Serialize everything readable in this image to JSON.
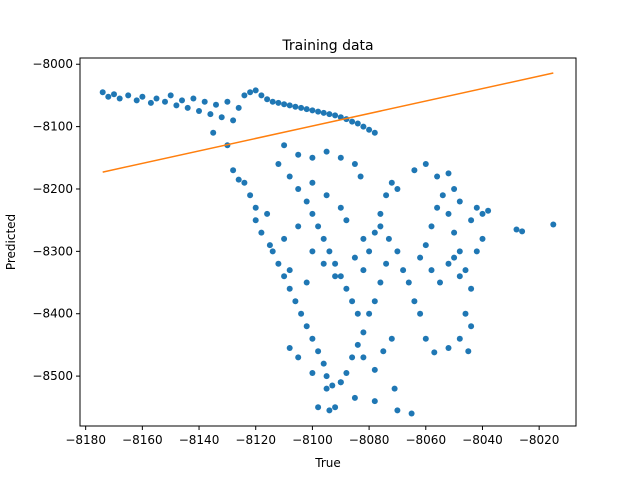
{
  "chart_data": {
    "type": "scatter",
    "title": "Training data",
    "xlabel": "True",
    "ylabel": "Predicted",
    "xlim": [
      -8182,
      -8007
    ],
    "ylim": [
      -8580,
      -7990
    ],
    "xticks": [
      -8180,
      -8160,
      -8140,
      -8120,
      -8100,
      -8080,
      -8060,
      -8040,
      -8020
    ],
    "yticks": [
      -8000,
      -8100,
      -8200,
      -8300,
      -8400,
      -8500
    ],
    "grid": false,
    "series": [
      {
        "kind": "scatter",
        "color": "#1f77b4",
        "points": [
          [
            -8174,
            -8045
          ],
          [
            -8172,
            -8052
          ],
          [
            -8170,
            -8048
          ],
          [
            -8168,
            -8055
          ],
          [
            -8165,
            -8050
          ],
          [
            -8162,
            -8058
          ],
          [
            -8160,
            -8052
          ],
          [
            -8157,
            -8062
          ],
          [
            -8155,
            -8055
          ],
          [
            -8152,
            -8060
          ],
          [
            -8150,
            -8050
          ],
          [
            -8148,
            -8066
          ],
          [
            -8146,
            -8058
          ],
          [
            -8144,
            -8070
          ],
          [
            -8142,
            -8055
          ],
          [
            -8140,
            -8075
          ],
          [
            -8138,
            -8060
          ],
          [
            -8136,
            -8080
          ],
          [
            -8134,
            -8065
          ],
          [
            -8132,
            -8085
          ],
          [
            -8130,
            -8060
          ],
          [
            -8128,
            -8090
          ],
          [
            -8126,
            -8070
          ],
          [
            -8124,
            -8050
          ],
          [
            -8122,
            -8045
          ],
          [
            -8120,
            -8042
          ],
          [
            -8118,
            -8050
          ],
          [
            -8116,
            -8056
          ],
          [
            -8114,
            -8060
          ],
          [
            -8112,
            -8062
          ],
          [
            -8110,
            -8064
          ],
          [
            -8108,
            -8066
          ],
          [
            -8106,
            -8068
          ],
          [
            -8104,
            -8070
          ],
          [
            -8102,
            -8072
          ],
          [
            -8100,
            -8074
          ],
          [
            -8098,
            -8076
          ],
          [
            -8096,
            -8078
          ],
          [
            -8094,
            -8080
          ],
          [
            -8092,
            -8082
          ],
          [
            -8090,
            -8085
          ],
          [
            -8088,
            -8088
          ],
          [
            -8086,
            -8092
          ],
          [
            -8084,
            -8095
          ],
          [
            -8082,
            -8100
          ],
          [
            -8080,
            -8105
          ],
          [
            -8078,
            -8110
          ],
          [
            -8135,
            -8110
          ],
          [
            -8130,
            -8130
          ],
          [
            -8128,
            -8170
          ],
          [
            -8126,
            -8185
          ],
          [
            -8124,
            -8190
          ],
          [
            -8122,
            -8210
          ],
          [
            -8120,
            -8230
          ],
          [
            -8120,
            -8250
          ],
          [
            -8118,
            -8270
          ],
          [
            -8116,
            -8240
          ],
          [
            -8115,
            -8290
          ],
          [
            -8114,
            -8300
          ],
          [
            -8112,
            -8320
          ],
          [
            -8110,
            -8340
          ],
          [
            -8108,
            -8360
          ],
          [
            -8106,
            -8380
          ],
          [
            -8104,
            -8400
          ],
          [
            -8102,
            -8420
          ],
          [
            -8100,
            -8440
          ],
          [
            -8098,
            -8460
          ],
          [
            -8096,
            -8480
          ],
          [
            -8095,
            -8500
          ],
          [
            -8093,
            -8515
          ],
          [
            -8090,
            -8510
          ],
          [
            -8088,
            -8495
          ],
          [
            -8086,
            -8470
          ],
          [
            -8084,
            -8450
          ],
          [
            -8082,
            -8430
          ],
          [
            -8080,
            -8400
          ],
          [
            -8078,
            -8380
          ],
          [
            -8076,
            -8350
          ],
          [
            -8074,
            -8320
          ],
          [
            -8112,
            -8160
          ],
          [
            -8108,
            -8180
          ],
          [
            -8105,
            -8200
          ],
          [
            -8102,
            -8220
          ],
          [
            -8100,
            -8240
          ],
          [
            -8098,
            -8260
          ],
          [
            -8096,
            -8280
          ],
          [
            -8094,
            -8300
          ],
          [
            -8092,
            -8320
          ],
          [
            -8090,
            -8340
          ],
          [
            -8088,
            -8360
          ],
          [
            -8086,
            -8380
          ],
          [
            -8084,
            -8400
          ],
          [
            -8082,
            -8330
          ],
          [
            -8080,
            -8300
          ],
          [
            -8078,
            -8270
          ],
          [
            -8076,
            -8240
          ],
          [
            -8074,
            -8210
          ],
          [
            -8072,
            -8190
          ],
          [
            -8070,
            -8200
          ],
          [
            -8110,
            -8130
          ],
          [
            -8105,
            -8145
          ],
          [
            -8100,
            -8150
          ],
          [
            -8095,
            -8140
          ],
          [
            -8090,
            -8150
          ],
          [
            -8085,
            -8160
          ],
          [
            -8083,
            -8180
          ],
          [
            -8100,
            -8190
          ],
          [
            -8095,
            -8210
          ],
          [
            -8090,
            -8230
          ],
          [
            -8088,
            -8250
          ],
          [
            -8105,
            -8260
          ],
          [
            -8110,
            -8280
          ],
          [
            -8100,
            -8300
          ],
          [
            -8096,
            -8320
          ],
          [
            -8092,
            -8340
          ],
          [
            -8102,
            -8350
          ],
          [
            -8108,
            -8330
          ],
          [
            -8085,
            -8310
          ],
          [
            -8082,
            -8280
          ],
          [
            -8076,
            -8260
          ],
          [
            -8073,
            -8280
          ],
          [
            -8070,
            -8300
          ],
          [
            -8068,
            -8330
          ],
          [
            -8066,
            -8350
          ],
          [
            -8064,
            -8380
          ],
          [
            -8062,
            -8400
          ],
          [
            -8060,
            -8290
          ],
          [
            -8058,
            -8260
          ],
          [
            -8056,
            -8230
          ],
          [
            -8054,
            -8210
          ],
          [
            -8052,
            -8240
          ],
          [
            -8050,
            -8270
          ],
          [
            -8048,
            -8300
          ],
          [
            -8046,
            -8330
          ],
          [
            -8044,
            -8360
          ],
          [
            -8042,
            -8300
          ],
          [
            -8040,
            -8280
          ],
          [
            -8064,
            -8170
          ],
          [
            -8060,
            -8160
          ],
          [
            -8056,
            -8180
          ],
          [
            -8052,
            -8175
          ],
          [
            -8050,
            -8200
          ],
          [
            -8048,
            -8220
          ],
          [
            -8044,
            -8250
          ],
          [
            -8042,
            -8230
          ],
          [
            -8040,
            -8240
          ],
          [
            -8038,
            -8235
          ],
          [
            -8028,
            -8265
          ],
          [
            -8015,
            -8257
          ],
          [
            -8026,
            -8268
          ],
          [
            -8060,
            -8440
          ],
          [
            -8057,
            -8462
          ],
          [
            -8072,
            -8440
          ],
          [
            -8075,
            -8460
          ],
          [
            -8078,
            -8490
          ],
          [
            -8071,
            -8520
          ],
          [
            -8078,
            -8540
          ],
          [
            -8085,
            -8535
          ],
          [
            -8090,
            -8510
          ],
          [
            -8095,
            -8520
          ],
          [
            -8098,
            -8550
          ],
          [
            -8094,
            -8555
          ],
          [
            -8092,
            -8550
          ],
          [
            -8070,
            -8555
          ],
          [
            -8065,
            -8560
          ],
          [
            -8082,
            -8470
          ],
          [
            -8100,
            -8495
          ],
          [
            -8105,
            -8470
          ],
          [
            -8108,
            -8455
          ],
          [
            -8062,
            -8310
          ],
          [
            -8058,
            -8330
          ],
          [
            -8055,
            -8350
          ],
          [
            -8052,
            -8320
          ],
          [
            -8050,
            -8310
          ],
          [
            -8048,
            -8340
          ],
          [
            -8046,
            -8400
          ],
          [
            -8044,
            -8420
          ],
          [
            -8048,
            -8440
          ],
          [
            -8052,
            -8455
          ],
          [
            -8045,
            -8460
          ]
        ]
      },
      {
        "kind": "line",
        "color": "#ff7f0e",
        "points": [
          [
            -8174,
            -8173
          ],
          [
            -8015,
            -8014
          ]
        ]
      }
    ]
  }
}
